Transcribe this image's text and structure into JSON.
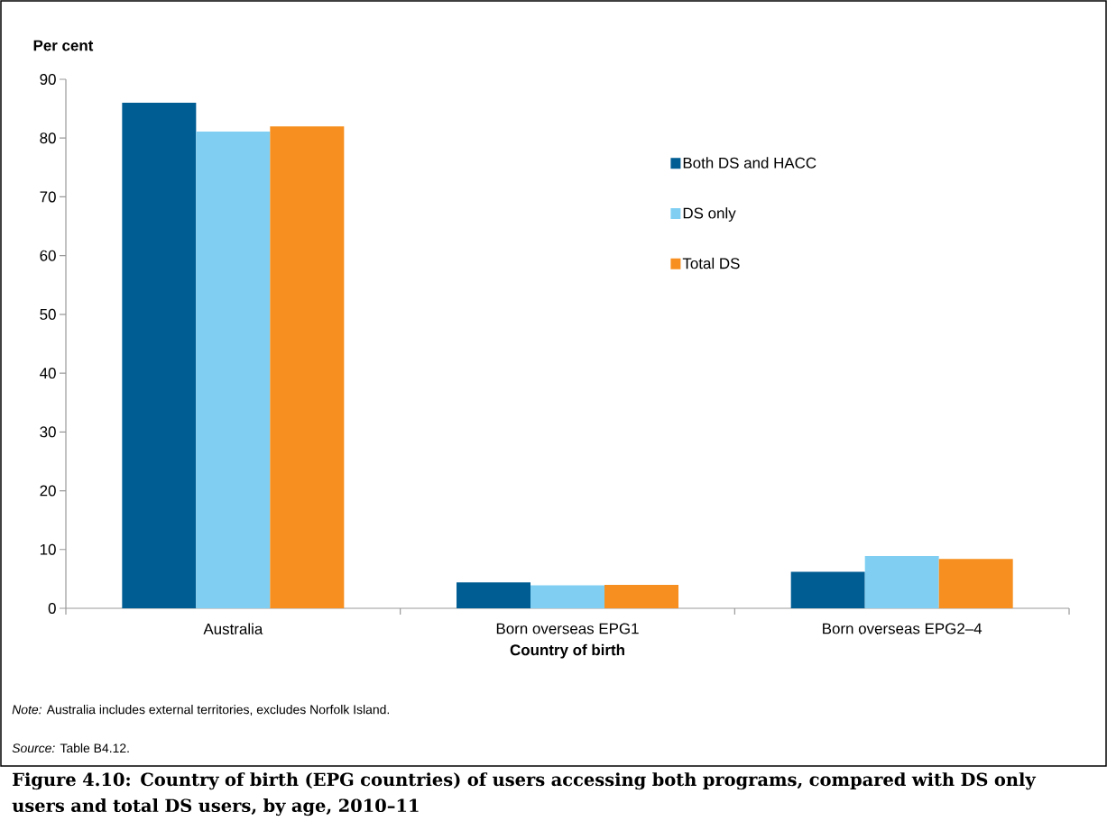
{
  "chart_data": {
    "type": "bar",
    "title": "Figure 4.10: Country of birth (EPG countries) of users accessing both programs, compared with DS only users and total DS users, by age, 2010–11",
    "xlabel": "Country of birth",
    "ylabel": "Per cent",
    "categories": [
      "Australia",
      "Born overseas EPG1",
      "Born overseas EPG2–4"
    ],
    "series": [
      {
        "name": "Both DS and HACC",
        "color": "#005d93",
        "values": [
          86.0,
          4.4,
          6.2
        ]
      },
      {
        "name": "DS only",
        "color": "#80cff3",
        "values": [
          81.1,
          3.9,
          8.9
        ]
      },
      {
        "name": "Total DS",
        "color": "#f68f1f",
        "values": [
          82.0,
          4.0,
          8.4
        ]
      }
    ],
    "ylim": [
      0,
      90
    ],
    "yticks": [
      0,
      10,
      20,
      30,
      40,
      50,
      60,
      70,
      80,
      90
    ],
    "legend": "top right",
    "annotations": [
      "*Note:* Australia includes external territories, excludes Norfolk Island.",
      "*Source:* Table B4.12."
    ]
  }
}
